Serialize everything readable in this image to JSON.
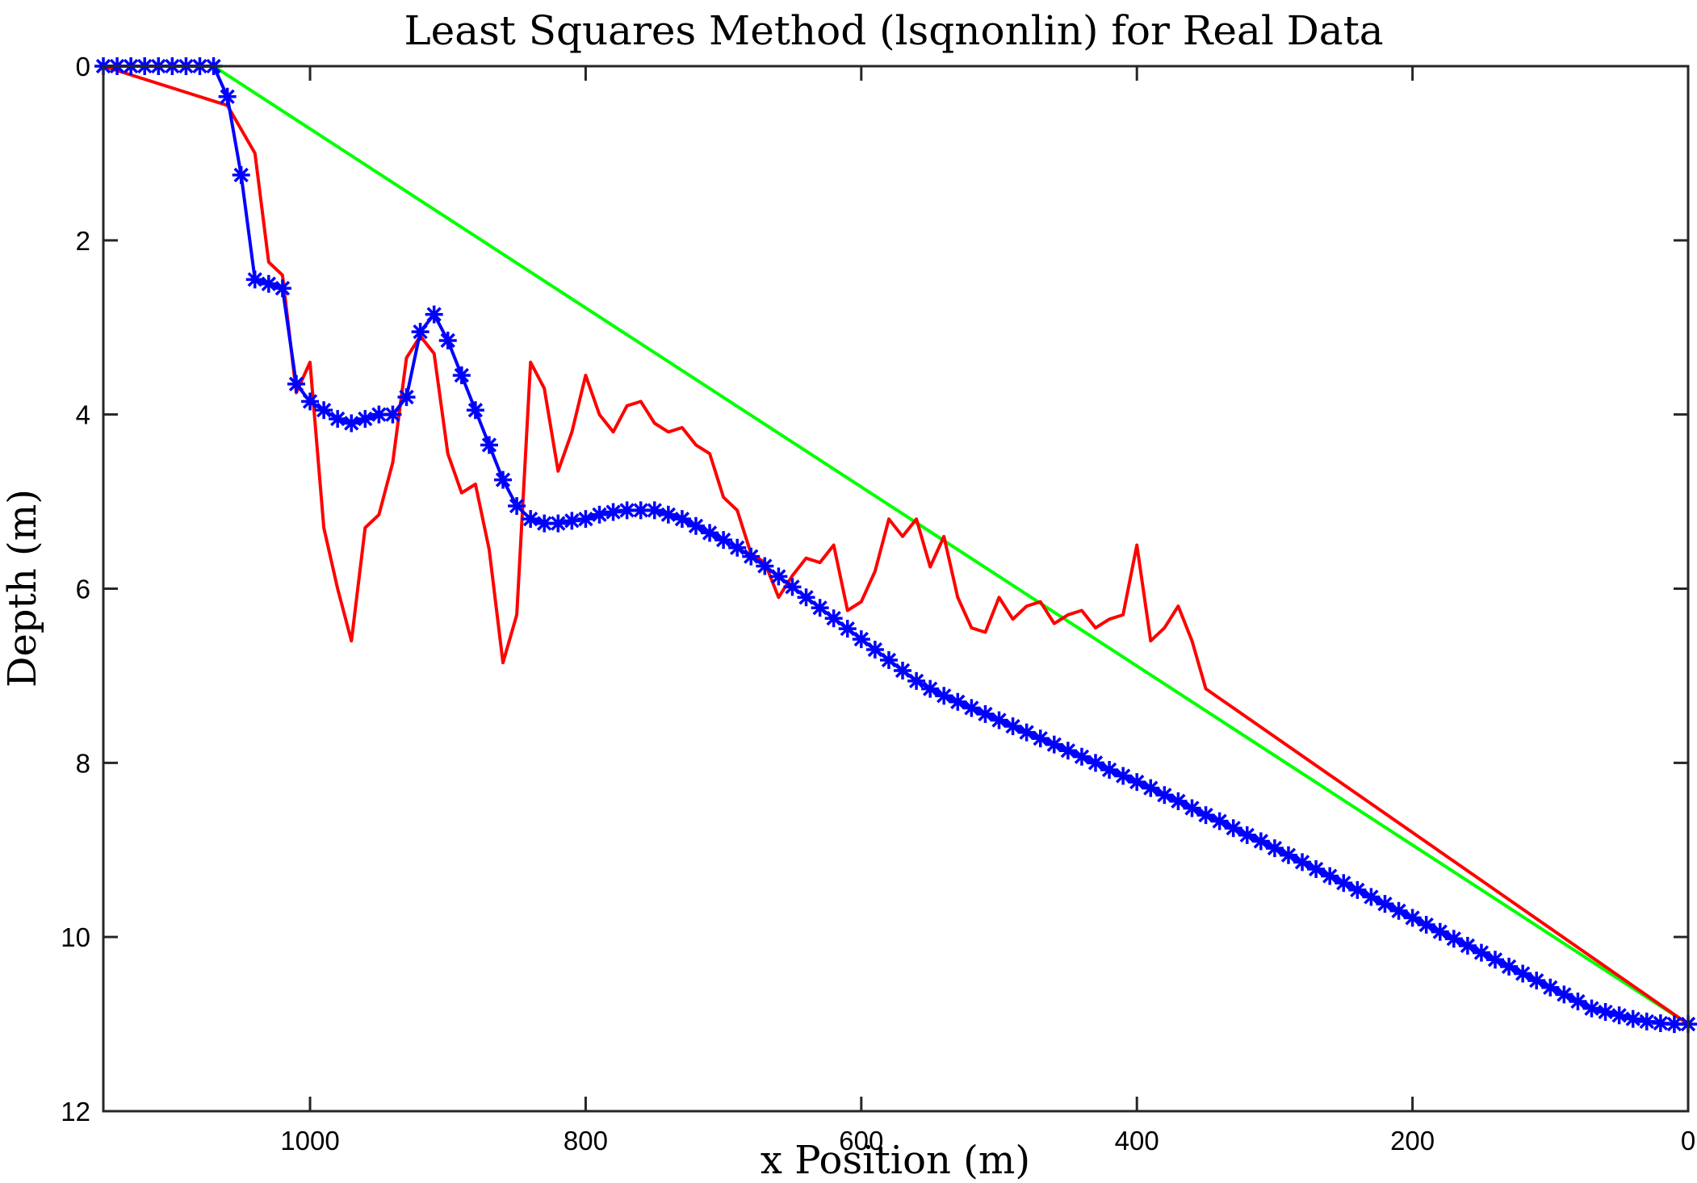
{
  "chart_data": {
    "type": "line",
    "title": "Least Squares Method (lsqnonlin) for Real Data",
    "xlabel": "x Position (m)",
    "ylabel": "Depth (m)",
    "xlim": [
      1150,
      0
    ],
    "ylim": [
      12,
      0
    ],
    "x_reversed": true,
    "y_reversed": true,
    "xticks": [
      1000,
      800,
      600,
      400,
      200,
      0
    ],
    "yticks": [
      0,
      2,
      4,
      6,
      8,
      10,
      12
    ],
    "grid": false,
    "series": [
      {
        "color": "#00ff00",
        "marker": "none",
        "x": [
          1150,
          1070,
          0
        ],
        "y": [
          0,
          0,
          11.0
        ]
      },
      {
        "color": "#ff0000",
        "marker": "none",
        "x": [
          1150,
          1060,
          1040,
          1030,
          1020,
          1010,
          1000,
          990,
          980,
          970,
          960,
          950,
          940,
          930,
          920,
          910,
          900,
          890,
          880,
          870,
          860,
          850,
          840,
          830,
          820,
          810,
          800,
          790,
          780,
          770,
          760,
          750,
          740,
          730,
          720,
          710,
          700,
          690,
          680,
          670,
          660,
          650,
          640,
          630,
          620,
          610,
          600,
          590,
          580,
          570,
          560,
          550,
          540,
          530,
          520,
          510,
          500,
          490,
          480,
          470,
          460,
          450,
          440,
          430,
          420,
          410,
          400,
          390,
          380,
          370,
          360,
          350,
          0
        ],
        "y": [
          0,
          0.45,
          1.0,
          2.25,
          2.4,
          3.75,
          3.4,
          5.3,
          6.0,
          6.6,
          5.3,
          5.15,
          4.55,
          3.35,
          3.1,
          3.3,
          4.45,
          4.9,
          4.8,
          5.55,
          6.85,
          6.3,
          3.4,
          3.7,
          4.65,
          4.2,
          3.55,
          4.0,
          4.2,
          3.9,
          3.85,
          4.1,
          4.2,
          4.15,
          4.35,
          4.45,
          4.95,
          5.1,
          5.6,
          5.7,
          6.1,
          5.85,
          5.65,
          5.7,
          5.5,
          6.25,
          6.15,
          5.8,
          5.2,
          5.4,
          5.2,
          5.75,
          5.4,
          6.1,
          6.45,
          6.5,
          6.1,
          6.35,
          6.2,
          6.15,
          6.4,
          6.3,
          6.25,
          6.45,
          6.35,
          6.3,
          5.5,
          6.6,
          6.45,
          6.2,
          6.6,
          7.15,
          11.0
        ]
      },
      {
        "color": "#0000ff",
        "marker": "asterisk",
        "x": [
          1150,
          1140,
          1130,
          1120,
          1110,
          1100,
          1090,
          1080,
          1070,
          1060,
          1050,
          1040,
          1030,
          1020,
          1010,
          1000,
          990,
          980,
          970,
          960,
          950,
          940,
          930,
          920,
          910,
          900,
          890,
          880,
          870,
          860,
          850,
          840,
          830,
          820,
          810,
          800,
          790,
          780,
          770,
          760,
          750,
          740,
          730,
          720,
          710,
          700,
          690,
          680,
          670,
          660,
          650,
          640,
          630,
          620,
          610,
          600,
          590,
          580,
          570,
          560,
          550,
          540,
          530,
          520,
          510,
          500,
          490,
          480,
          470,
          460,
          450,
          440,
          430,
          420,
          410,
          400,
          390,
          380,
          370,
          360,
          350,
          340,
          330,
          320,
          310,
          300,
          290,
          280,
          270,
          260,
          250,
          240,
          230,
          220,
          210,
          200,
          190,
          180,
          170,
          160,
          150,
          140,
          130,
          120,
          110,
          100,
          90,
          80,
          70,
          60,
          50,
          40,
          30,
          20,
          10,
          0
        ],
        "y": [
          0,
          0,
          0,
          0,
          0,
          0,
          0,
          0,
          0,
          0.35,
          1.25,
          2.45,
          2.5,
          2.55,
          3.65,
          3.85,
          3.95,
          4.05,
          4.1,
          4.05,
          4.0,
          4.0,
          3.8,
          3.05,
          2.85,
          3.15,
          3.55,
          3.95,
          4.35,
          4.75,
          5.05,
          5.2,
          5.25,
          5.25,
          5.22,
          5.2,
          5.15,
          5.12,
          5.1,
          5.1,
          5.1,
          5.15,
          5.2,
          5.28,
          5.36,
          5.44,
          5.53,
          5.63,
          5.74,
          5.86,
          5.98,
          6.1,
          6.22,
          6.34,
          6.46,
          6.58,
          6.7,
          6.82,
          6.94,
          7.06,
          7.15,
          7.23,
          7.3,
          7.37,
          7.44,
          7.51,
          7.58,
          7.65,
          7.72,
          7.79,
          7.86,
          7.93,
          8.0,
          8.08,
          8.15,
          8.22,
          8.29,
          8.37,
          8.44,
          8.52,
          8.6,
          8.67,
          8.75,
          8.83,
          8.9,
          8.98,
          9.06,
          9.14,
          9.22,
          9.3,
          9.38,
          9.46,
          9.54,
          9.62,
          9.7,
          9.78,
          9.86,
          9.94,
          10.02,
          10.1,
          10.18,
          10.26,
          10.34,
          10.42,
          10.5,
          10.58,
          10.66,
          10.74,
          10.82,
          10.86,
          10.9,
          10.94,
          10.97,
          10.99,
          11.0,
          11.0
        ]
      }
    ]
  }
}
